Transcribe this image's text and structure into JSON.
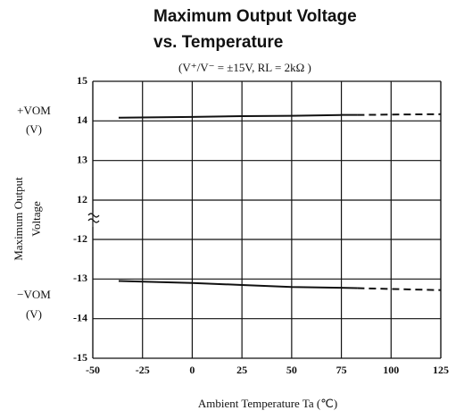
{
  "chart_data": [
    {
      "type": "line",
      "title": [
        "Maximum Output Voltage",
        "vs. Temperature"
      ],
      "subtitle": "(V⁺/V⁻ = ±15V, RL = 2kΩ )",
      "ylabel": [
        "Maximum Output",
        "Voltage"
      ],
      "unit_label": [
        "+VOM",
        "(V)"
      ],
      "ylim": [
        12,
        15
      ],
      "yticks": [
        12,
        13,
        14,
        15
      ],
      "grid": true,
      "color": "#111",
      "series": [
        {
          "x": [
            -37,
            0,
            25,
            50,
            75,
            83
          ],
          "values": [
            14.08,
            14.1,
            14.12,
            14.13,
            14.15,
            14.15
          ],
          "dash": false
        },
        {
          "x": [
            83,
            100,
            125
          ],
          "values": [
            14.15,
            14.16,
            14.17
          ],
          "dash": true
        }
      ]
    },
    {
      "type": "line",
      "unit_label": [
        "−VOM",
        "(V)"
      ],
      "xlabel": "Ambient Temperature Ta (℃)",
      "xlim": [
        -50,
        125
      ],
      "xticks": [
        -50,
        -25,
        0,
        25,
        50,
        75,
        100,
        125
      ],
      "ylim": [
        -15,
        -12
      ],
      "yticks": [
        -15,
        -14,
        -13,
        -12
      ],
      "grid": true,
      "color": "#111",
      "series": [
        {
          "x": [
            -37,
            0,
            25,
            50,
            75,
            83
          ],
          "values": [
            -13.05,
            -13.1,
            -13.15,
            -13.2,
            -13.22,
            -13.23
          ],
          "dash": false
        },
        {
          "x": [
            83,
            100,
            125
          ],
          "values": [
            -13.23,
            -13.25,
            -13.28
          ],
          "dash": true
        }
      ]
    }
  ]
}
